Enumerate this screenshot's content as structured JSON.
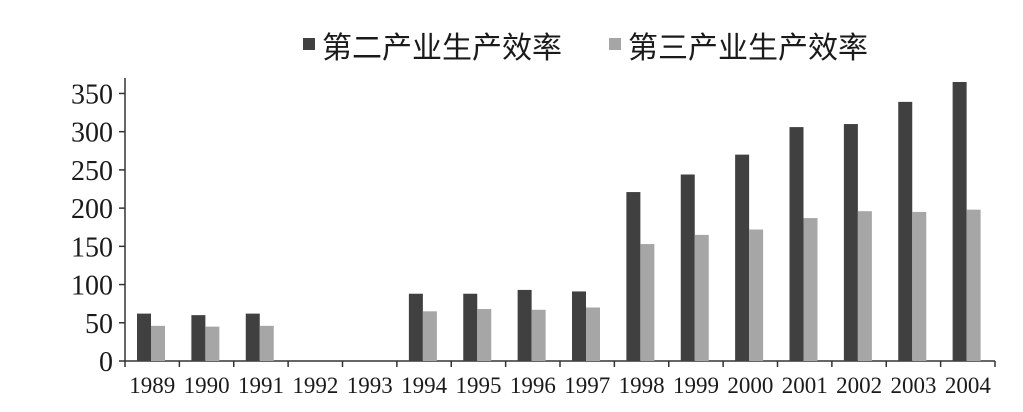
{
  "chart_data": {
    "type": "bar",
    "categories": [
      "1989",
      "1990",
      "1991",
      "1992",
      "1993",
      "1994",
      "1995",
      "1996",
      "1997",
      "1998",
      "1999",
      "2000",
      "2001",
      "2002",
      "2003",
      "2004"
    ],
    "series": [
      {
        "name": "第二产业生产效率",
        "color": "#404040",
        "values": [
          62,
          60,
          62,
          null,
          null,
          88,
          88,
          93,
          91,
          221,
          244,
          270,
          306,
          310,
          339,
          365
        ]
      },
      {
        "name": "第三产业生产效率",
        "color": "#a6a6a6",
        "values": [
          46,
          45,
          46,
          null,
          null,
          65,
          68,
          67,
          70,
          153,
          165,
          172,
          187,
          196,
          195,
          198
        ]
      }
    ],
    "ylim": [
      0,
      365
    ],
    "yticks": [
      0,
      50,
      100,
      150,
      200,
      250,
      300,
      350
    ],
    "legend_position": "top",
    "grid": false
  }
}
